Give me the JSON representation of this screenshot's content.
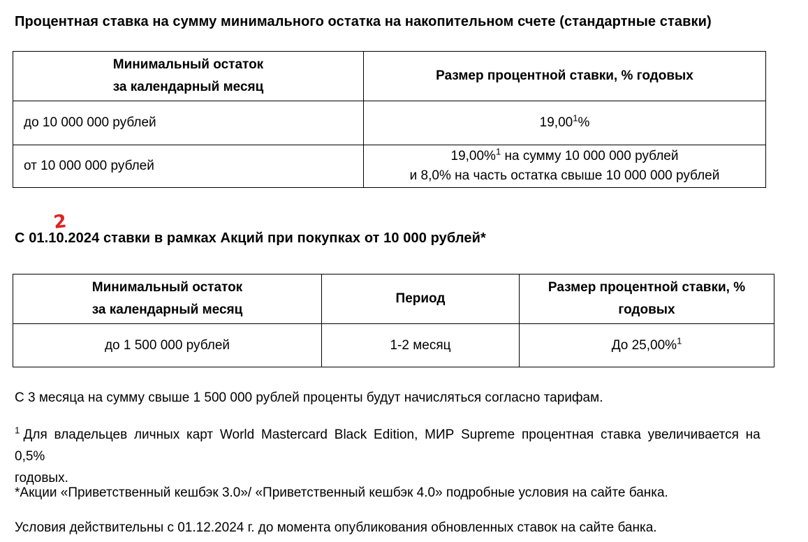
{
  "annotation": {
    "text": "2",
    "color": "#e02020"
  },
  "section_standard": {
    "title": "Процентная ставка на сумму минимального остатка на накопительном счете (стандартные ставки)",
    "table": {
      "col1_header": "Минимальный остаток\nза календарный месяц",
      "col2_header": "Размер процентной ставки, % годовых",
      "rows": [
        {
          "balance": "до 10 000 000 рублей",
          "rate_before_sup": "19,00",
          "rate_sup": "1",
          "rate_after_sup": "%"
        },
        {
          "balance": "от 10 000 000 рублей",
          "rate_line1_before_sup": "19,00%",
          "rate_line1_sup": "1",
          "rate_line1_after_sup": " на сумму 10 000 000 рублей",
          "rate_line2": "и 8,0% на часть остатка свыше 10 000 000 рублей"
        }
      ]
    }
  },
  "section_promo": {
    "title": "С 01.10.2024 ставки в рамках Акций при покупках от 10 000 рублей*",
    "table": {
      "col1_header": "Минимальный остаток\nза календарный месяц",
      "col2_header": "Период",
      "col3_header": "Размер процентной ставки, %\nгодовых",
      "row": {
        "balance": "до 1 500 000 рублей",
        "period": "1-2 месяц",
        "rate_before_sup": "До 25,00%",
        "rate_sup": "1"
      }
    }
  },
  "notes": {
    "month3": "С 3 месяца на сумму свыше 1 500 000 рублей проценты будут начисляться согласно тарифам.",
    "footnote_sup": "1",
    "footnote_line1": "Для владельцев личных карт World Mastercard Black Edition, МИР Supreme процентная ставка увеличивается на 0,5%",
    "footnote_line2": "годовых.",
    "promo_conditions": "*Акции «Приветственный кешбэк 3.0»/ «Приветственный кешбэк 4.0» подробные условия на сайте банка.",
    "validity": "Условия действительны с 01.12.2024 г. до момента опубликования обновленных ставок на сайте банка."
  }
}
